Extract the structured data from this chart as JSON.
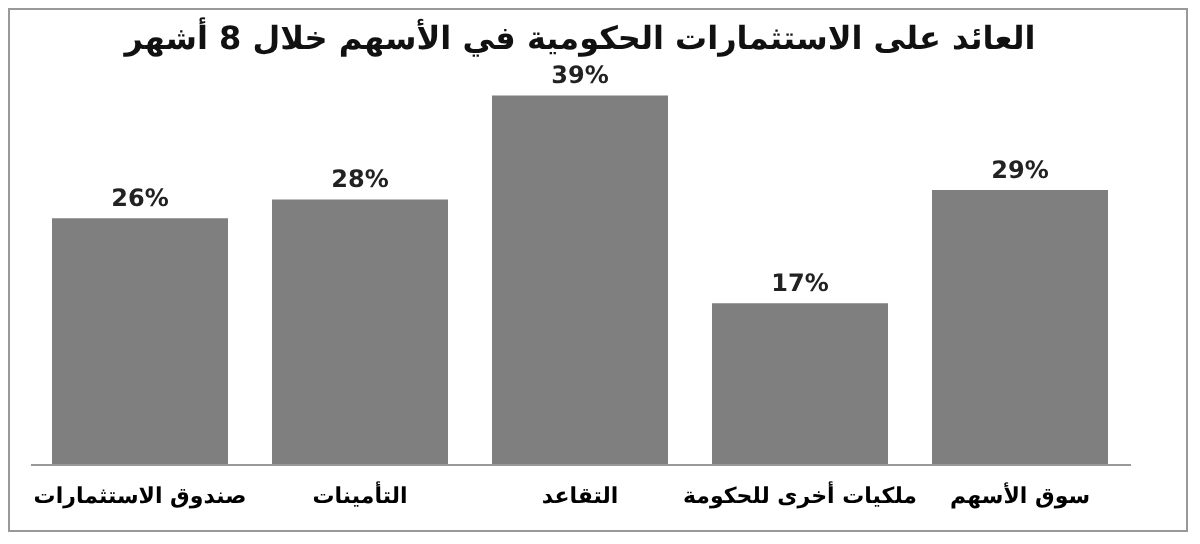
{
  "chart_data": {
    "type": "bar",
    "title": "العائد على الاستثمارات الحكومية في الأسهم خلال 8 أشهر",
    "categories": [
      "صندوق الاستثمارات",
      "التأمينات",
      "التقاعد",
      "ملكيات أخرى للحكومة",
      "سوق الأسهم"
    ],
    "values": [
      26,
      28,
      39,
      17,
      29
    ],
    "value_labels": [
      "26%",
      "28%",
      "39%",
      "17%",
      "29%"
    ],
    "color": "#7f7f7f"
  }
}
